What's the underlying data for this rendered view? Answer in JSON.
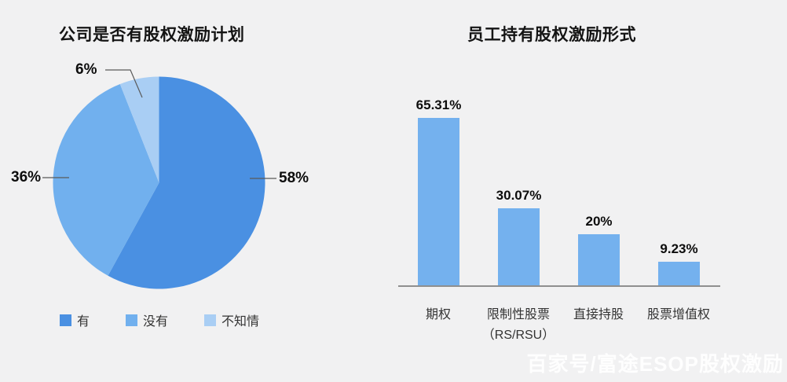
{
  "page": {
    "background": "#f1f1f2",
    "watermark": "百家号/富途ESOP股权激励"
  },
  "chart_data": [
    {
      "type": "pie",
      "title": "公司是否有股权激励计划",
      "labels": [
        "有",
        "没有",
        "不知情"
      ],
      "values": [
        58,
        36,
        6
      ],
      "value_labels": [
        "58%",
        "36%",
        "6%"
      ],
      "colors": [
        "#4a90e2",
        "#71b0ee",
        "#a9cef4"
      ],
      "start": "top",
      "direction": "clockwise",
      "legend_position": "bottom-left"
    },
    {
      "type": "bar",
      "title": "员工持有股权激励形式",
      "categories": [
        "期权",
        "限制性股票（RS/RSU）",
        "直接持股",
        "股票增值权"
      ],
      "category_lines": [
        [
          "期权",
          ""
        ],
        [
          "限制性股票",
          "（RS/RSU）"
        ],
        [
          "直接持股",
          ""
        ],
        [
          "股票增值权",
          ""
        ]
      ],
      "values": [
        65.31,
        30.07,
        20,
        9.23
      ],
      "value_labels": [
        "65.31%",
        "30.07%",
        "20%",
        "9.23%"
      ],
      "bar_color": "#74b1ee",
      "baseline_color": "#8f8f8f",
      "ylim": [
        0,
        70
      ],
      "grid": false,
      "legend": "none"
    }
  ]
}
